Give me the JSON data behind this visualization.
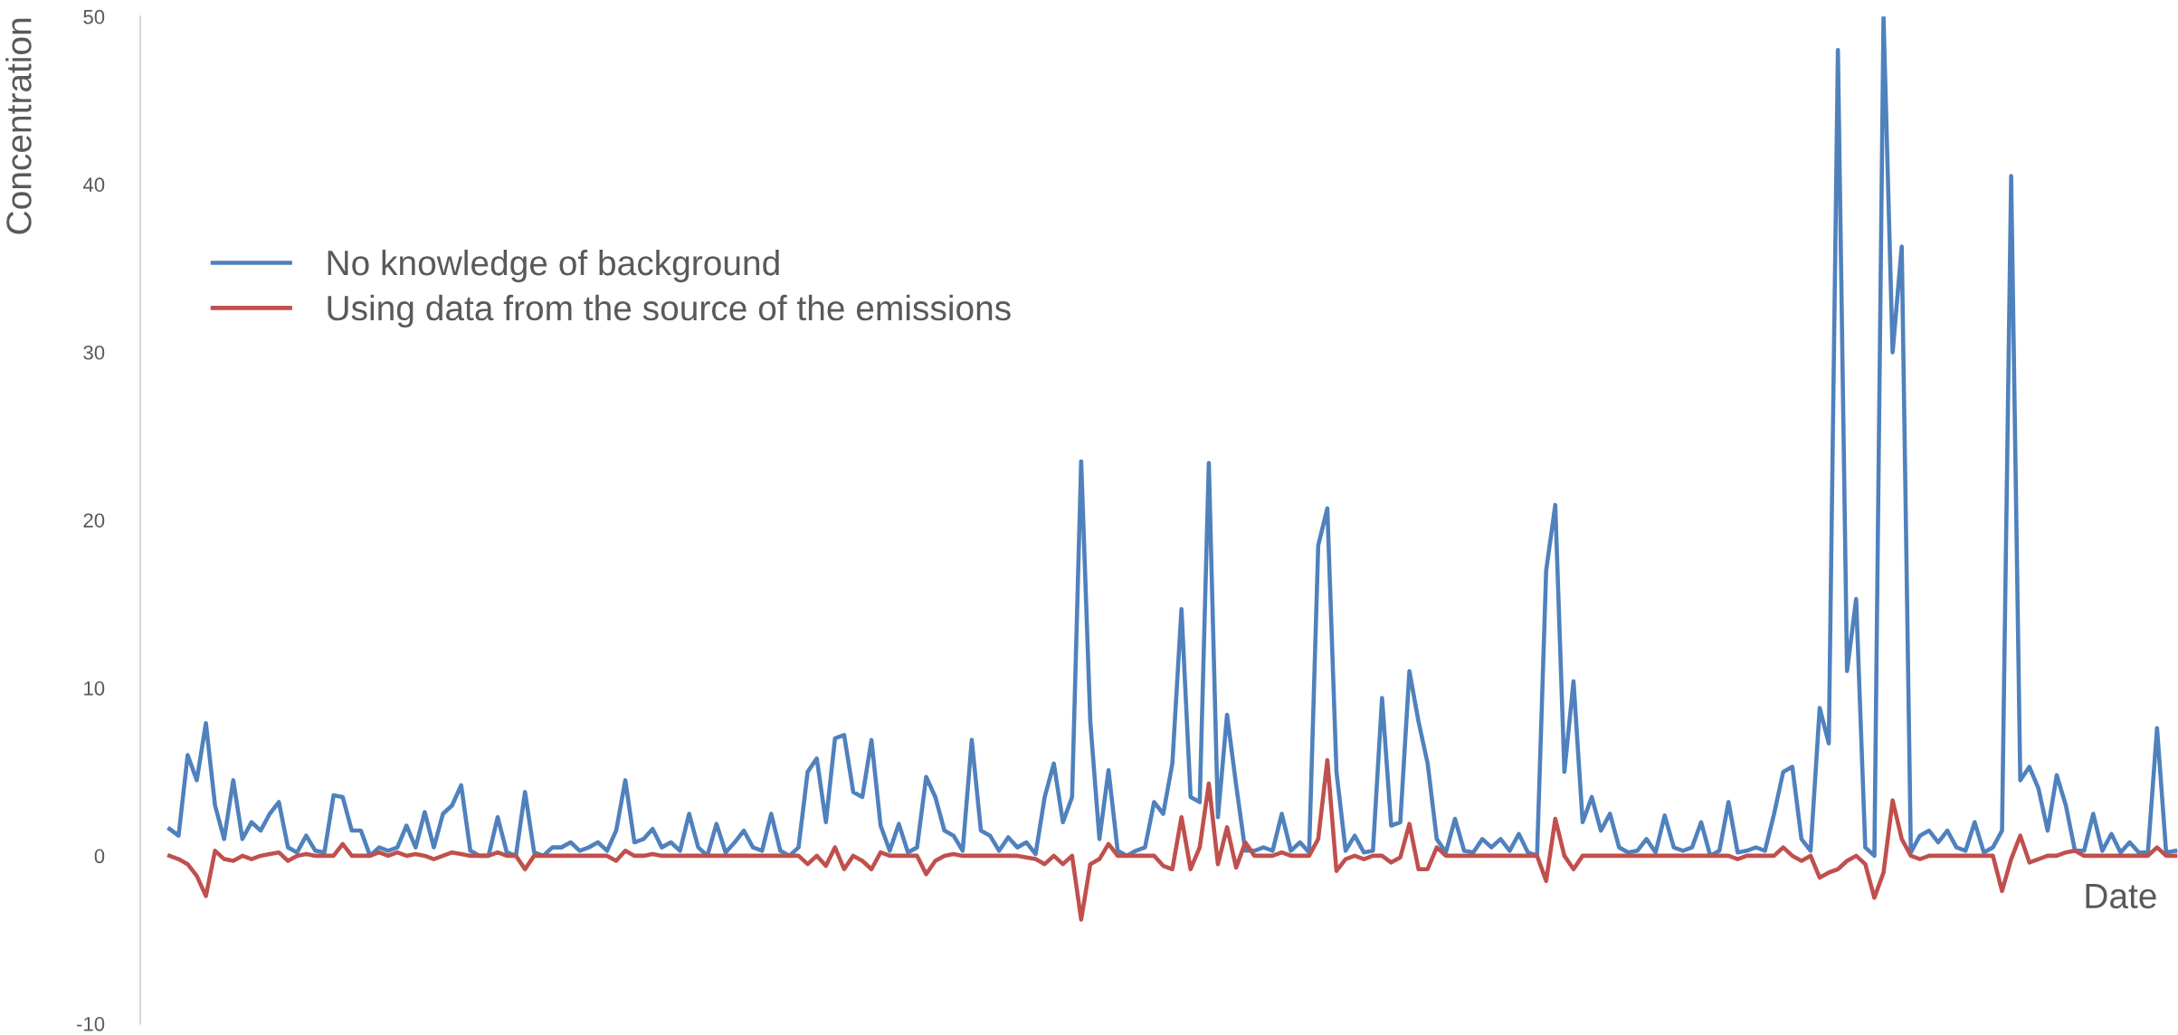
{
  "chart_data": {
    "type": "line",
    "xlabel": "Date",
    "ylabel": "Concentration",
    "categories": [
      null,
      null,
      null,
      null,
      null,
      null,
      null,
      null,
      null,
      null,
      null,
      null,
      null,
      null,
      null,
      null,
      null,
      null,
      null,
      null,
      null,
      null,
      null,
      null,
      null,
      null,
      null,
      null,
      null,
      null,
      null,
      null,
      null,
      null,
      null,
      null,
      null,
      null,
      null,
      null,
      null,
      null,
      null,
      null,
      null,
      null,
      null,
      null,
      null,
      null,
      null,
      null,
      null,
      null,
      null,
      null,
      null,
      null,
      null,
      null,
      null,
      null,
      null,
      null,
      null,
      null,
      null,
      null,
      null,
      null,
      null,
      null,
      null,
      null,
      null,
      null,
      null,
      null,
      null,
      null,
      null,
      null,
      null,
      null,
      null,
      null,
      null,
      null,
      null,
      null,
      null,
      null,
      null,
      null,
      null,
      null,
      null,
      null,
      null,
      null,
      null,
      null,
      null,
      null,
      null,
      null,
      null,
      null,
      null,
      null,
      null,
      null,
      null,
      null,
      null,
      null,
      null,
      null,
      null,
      null,
      null,
      null,
      null,
      null,
      null,
      null,
      null,
      null,
      null,
      null,
      null,
      null,
      null,
      null,
      null,
      null,
      null,
      null,
      null,
      null,
      null,
      null,
      null,
      null,
      null,
      null,
      null,
      null,
      null,
      null,
      null,
      null,
      null,
      null,
      null,
      null,
      null,
      null,
      null,
      null,
      null,
      null,
      null,
      null,
      null,
      null,
      null,
      null,
      null,
      null,
      null,
      null,
      null,
      null,
      null,
      null,
      null,
      null,
      null,
      null,
      null,
      null,
      null,
      null,
      null,
      null,
      null,
      null,
      null,
      null,
      null,
      null,
      null,
      null,
      null,
      null,
      null,
      null,
      null,
      null,
      null,
      null,
      null,
      null,
      null,
      null,
      null,
      null,
      null,
      null,
      null,
      null,
      null,
      null,
      null,
      null,
      null,
      null,
      null,
      null,
      null
    ],
    "series": [
      {
        "name": "No knowledge of background",
        "color": "#4f81bd",
        "values": [
          1.6,
          1.2,
          6,
          4.5,
          7.9,
          3,
          1,
          4.5,
          1,
          2,
          1.5,
          2.5,
          3.2,
          0.5,
          0.2,
          1.2,
          0.3,
          0.2,
          3.6,
          3.5,
          1.5,
          1.5,
          0,
          0.5,
          0.3,
          0.5,
          1.8,
          0.5,
          2.6,
          0.5,
          2.5,
          3,
          4.2,
          0.3,
          0,
          0,
          2.3,
          0.2,
          0,
          3.8,
          0.2,
          0,
          0.5,
          0.5,
          0.8,
          0.3,
          0.5,
          0.8,
          0.3,
          1.5,
          4.5,
          0.8,
          1,
          1.6,
          0.5,
          0.8,
          0.3,
          2.5,
          0.5,
          0,
          1.9,
          0.2,
          0.8,
          1.5,
          0.5,
          0.3,
          2.5,
          0.3,
          0,
          0.5,
          5,
          5.8,
          2,
          7,
          7.2,
          3.8,
          3.5,
          6.9,
          1.8,
          0.3,
          1.9,
          0.2,
          0.5,
          4.7,
          3.5,
          1.5,
          1.2,
          0.3,
          6.9,
          1.5,
          1.2,
          0.3,
          1.1,
          0.5,
          0.8,
          0.1,
          3.5,
          5.5,
          2,
          3.5,
          23.5,
          8,
          1,
          5.1,
          0.3,
          0,
          0.3,
          0.5,
          3.2,
          2.5,
          5.5,
          14.7,
          3.5,
          3.2,
          23.4,
          2.3,
          8.4,
          4.2,
          0.3,
          0.3,
          0.5,
          0.3,
          2.5,
          0.3,
          0.8,
          0.2,
          18.5,
          20.7,
          5,
          0.3,
          1.2,
          0.2,
          0.3,
          9.4,
          1.8,
          2,
          11,
          8,
          5.5,
          1,
          0.2,
          2.2,
          0.3,
          0.2,
          1,
          0.5,
          1,
          0.3,
          1.3,
          0.2,
          0,
          17,
          20.9,
          5,
          10.4,
          2,
          3.5,
          1.5,
          2.5,
          0.5,
          0.2,
          0.3,
          1,
          0.2,
          2.4,
          0.5,
          0.3,
          0.5,
          2,
          0,
          0.3,
          3.2,
          0.2,
          0.3,
          0.5,
          0.3,
          2.5,
          5,
          5.3,
          1,
          0.3,
          8.8,
          6.7,
          48,
          11,
          15.3,
          0.5,
          0,
          50,
          30,
          36.3,
          0.2,
          1.2,
          1.5,
          0.8,
          1.5,
          0.5,
          0.3,
          2,
          0.2,
          0.5,
          1.5,
          40.5,
          4.5,
          5.3,
          4,
          1.5,
          4.8,
          3,
          0.3,
          0.3,
          2.5,
          0.3,
          1.3,
          0.2,
          0.8,
          0.2,
          0.2,
          7.6,
          0.2,
          0.3
        ]
      },
      {
        "name": "Using data from the source of the emissions",
        "color": "#c0504d",
        "values": [
          0,
          -0.2,
          -0.5,
          -1.2,
          -2.4,
          0.3,
          -0.2,
          -0.3,
          0,
          -0.2,
          0,
          0.1,
          0.2,
          -0.3,
          0,
          0.1,
          0,
          0,
          0,
          0.7,
          0,
          0,
          0,
          0.2,
          0,
          0.2,
          0,
          0.1,
          0,
          -0.2,
          0,
          0.2,
          0.1,
          0,
          0,
          0,
          0.2,
          0,
          0,
          -0.8,
          0,
          0,
          0,
          0,
          0,
          0,
          0,
          0,
          0,
          -0.3,
          0.3,
          0,
          0,
          0.1,
          0,
          0,
          0,
          0,
          0,
          0,
          0,
          0,
          0,
          0,
          0,
          0,
          0,
          0,
          0,
          0,
          -0.5,
          0,
          -0.6,
          0.5,
          -0.8,
          0,
          -0.3,
          -0.8,
          0.2,
          0,
          0,
          0,
          0,
          -1.1,
          -0.3,
          0,
          0.1,
          0,
          0,
          0,
          0,
          0,
          0,
          0,
          -0.1,
          -0.2,
          -0.5,
          0,
          -0.5,
          0,
          -3.8,
          -0.5,
          -0.2,
          0.7,
          0,
          0,
          0,
          0,
          0,
          -0.6,
          -0.8,
          2.3,
          -0.8,
          0.5,
          4.3,
          -0.5,
          1.7,
          -0.7,
          0.8,
          0,
          0,
          0,
          0.2,
          0,
          0,
          0,
          1,
          5.7,
          -0.9,
          -0.2,
          0,
          -0.2,
          0,
          0,
          -0.4,
          -0.1,
          1.9,
          -0.8,
          -0.8,
          0.5,
          0,
          0,
          0,
          0,
          0,
          0,
          0,
          0,
          0,
          0,
          0,
          -1.5,
          2.2,
          0,
          -0.8,
          0,
          0,
          0,
          0,
          0,
          0,
          0,
          0,
          0,
          0,
          0,
          0,
          0,
          0,
          0,
          0,
          0,
          -0.2,
          0,
          0,
          0,
          0,
          0.5,
          0,
          -0.3,
          0,
          -1.3,
          -1,
          -0.8,
          -0.3,
          0,
          -0.5,
          -2.5,
          -1,
          3.3,
          1,
          0,
          -0.2,
          0,
          0,
          0,
          0,
          0,
          0,
          0,
          0,
          -2.1,
          -0.2,
          1.2,
          -0.4,
          -0.2,
          0,
          0,
          0.2,
          0.3,
          0,
          0,
          0,
          0,
          0,
          0,
          0,
          0,
          0.5,
          0,
          0
        ]
      }
    ],
    "ylim": [
      -10,
      50
    ],
    "yticks": [
      -10,
      0,
      10,
      20,
      30,
      40,
      50
    ],
    "legend": "top left",
    "tick_labels": "y",
    "grid": false
  }
}
